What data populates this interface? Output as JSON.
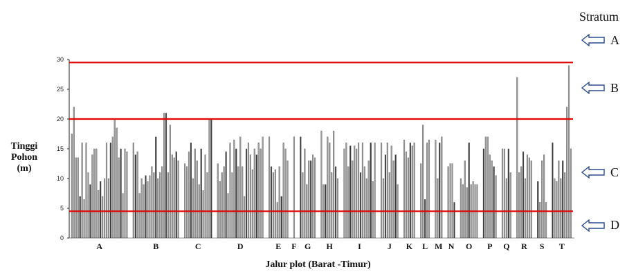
{
  "chart_data": {
    "type": "bar",
    "xlabel": "Jalur plot  (Barat -Timur)",
    "ylabel": [
      "Tinggi",
      "Pohon",
      "(m)"
    ],
    "ylim": [
      0,
      30
    ],
    "yticks": [
      0,
      5,
      10,
      15,
      20,
      25,
      30
    ],
    "plots": [
      {
        "label": "A",
        "heights": [
          17.5,
          22,
          13.5,
          13.5,
          7,
          16,
          6.5,
          16,
          11,
          9,
          14,
          15,
          15,
          8,
          9.5,
          7,
          10,
          16,
          10,
          16,
          17,
          20,
          18.5,
          13.5,
          15,
          7.5,
          15,
          14.5
        ]
      },
      {
        "label": "B",
        "heights": [
          16,
          14,
          14.5,
          7.5,
          10,
          9,
          10.5,
          9.5,
          10.5,
          12,
          11,
          17,
          10,
          11,
          12,
          21,
          21,
          11,
          19,
          14,
          13.5,
          14.5,
          13
        ]
      },
      {
        "label": "C",
        "heights": [
          12.5,
          12,
          14.5,
          16,
          10,
          15,
          13,
          9,
          15,
          8,
          14,
          11,
          20,
          20
        ]
      },
      {
        "label": "D",
        "heights": [
          12.5,
          9.5,
          11,
          12,
          14.5,
          7.5,
          16,
          11,
          16.5,
          15,
          12,
          17,
          12,
          7,
          15,
          16,
          14,
          11.5,
          15,
          14,
          16,
          15,
          17
        ]
      },
      {
        "label": "E",
        "heights": [
          17,
          12,
          11,
          11.5,
          6,
          12,
          7,
          16,
          15,
          13
        ]
      },
      {
        "label": "F",
        "heights": [
          17
        ]
      },
      {
        "label": "G",
        "heights": [
          17,
          11,
          15,
          9,
          13,
          13,
          14,
          13.5
        ]
      },
      {
        "label": "H",
        "heights": [
          18,
          9,
          9,
          17,
          16,
          11,
          18,
          12,
          10
        ]
      },
      {
        "label": "I",
        "heights": [
          15,
          16,
          12,
          15.5,
          13,
          15.5,
          15,
          16,
          11,
          16,
          12,
          10,
          13,
          16,
          9.5,
          16
        ]
      },
      {
        "label": "J",
        "heights": [
          16,
          10,
          14,
          16,
          11,
          15.5,
          13,
          14,
          9
        ]
      },
      {
        "label": "K",
        "heights": [
          16.5,
          14.5,
          13.5,
          16,
          15.5,
          16
        ]
      },
      {
        "label": "L",
        "heights": [
          12.5,
          19,
          6.5,
          16,
          16.5
        ]
      },
      {
        "label": "M",
        "heights": [
          16.5,
          10,
          16,
          17
        ]
      },
      {
        "label": "N",
        "heights": [
          12,
          12.5,
          12.5,
          6
        ]
      },
      {
        "label": "O",
        "heights": [
          10,
          9,
          13,
          8.5,
          16,
          9,
          9.5,
          9,
          9
        ]
      },
      {
        "label": "P",
        "heights": [
          15,
          17,
          17,
          14,
          13,
          12,
          10.5
        ]
      },
      {
        "label": "Q",
        "heights": [
          15,
          15,
          10,
          15,
          11
        ]
      },
      {
        "label": "R",
        "heights": [
          27,
          11,
          12,
          14.5,
          10,
          14,
          13.5,
          13
        ]
      },
      {
        "label": "S",
        "heights": [
          9.5,
          6,
          13,
          14,
          6
        ]
      },
      {
        "label": "T",
        "heights": [
          16,
          10,
          9.5,
          13,
          10,
          13,
          11,
          22,
          29,
          15
        ]
      }
    ],
    "reference_lines": [
      29.5,
      20,
      4.5
    ],
    "stratum_title": "Stratum",
    "strata": [
      {
        "label": "A",
        "y": 33.2
      },
      {
        "label": "B",
        "y": 25.2
      },
      {
        "label": "C",
        "y": 11
      },
      {
        "label": "D",
        "y": 2.1
      }
    ],
    "colors": {
      "bar": "#9a9a9a",
      "bar_dark": "#3a3a3a",
      "reference_line": "#e00000",
      "axis": "#222222"
    }
  }
}
